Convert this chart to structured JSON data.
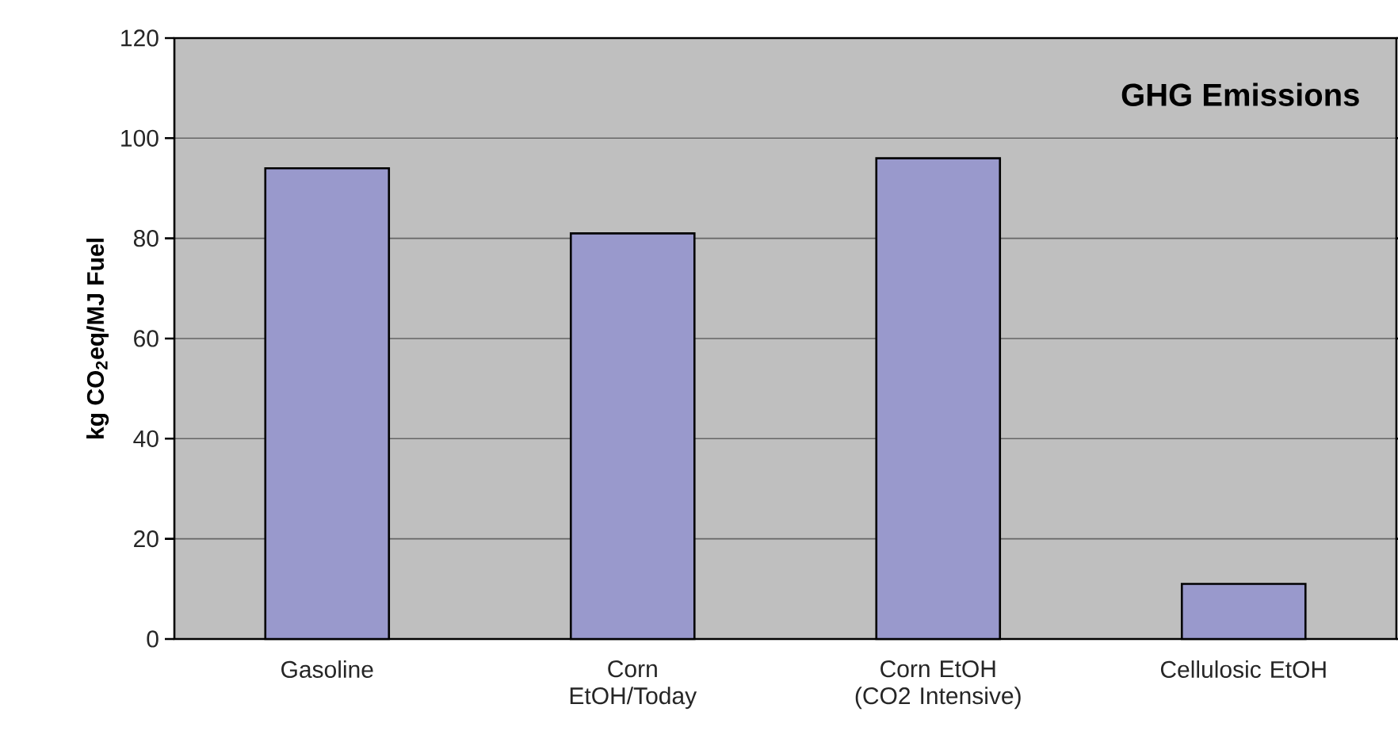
{
  "chart_data": {
    "type": "bar",
    "title": "GHG Emissions",
    "ylabel": "kg CO$_{2}$eq/MJ Fuel",
    "categories": [
      "Gasoline",
      "Corn EtOH/Today",
      "Corn EtOH (CO2 Intensive)",
      "Cellulosic EtOH"
    ],
    "values": [
      94,
      81,
      96,
      11
    ],
    "color": "#9999cc",
    "ylim": [
      0,
      120
    ],
    "yticks": [
      0,
      20,
      40,
      60,
      80,
      100,
      120
    ],
    "grid": "y"
  }
}
